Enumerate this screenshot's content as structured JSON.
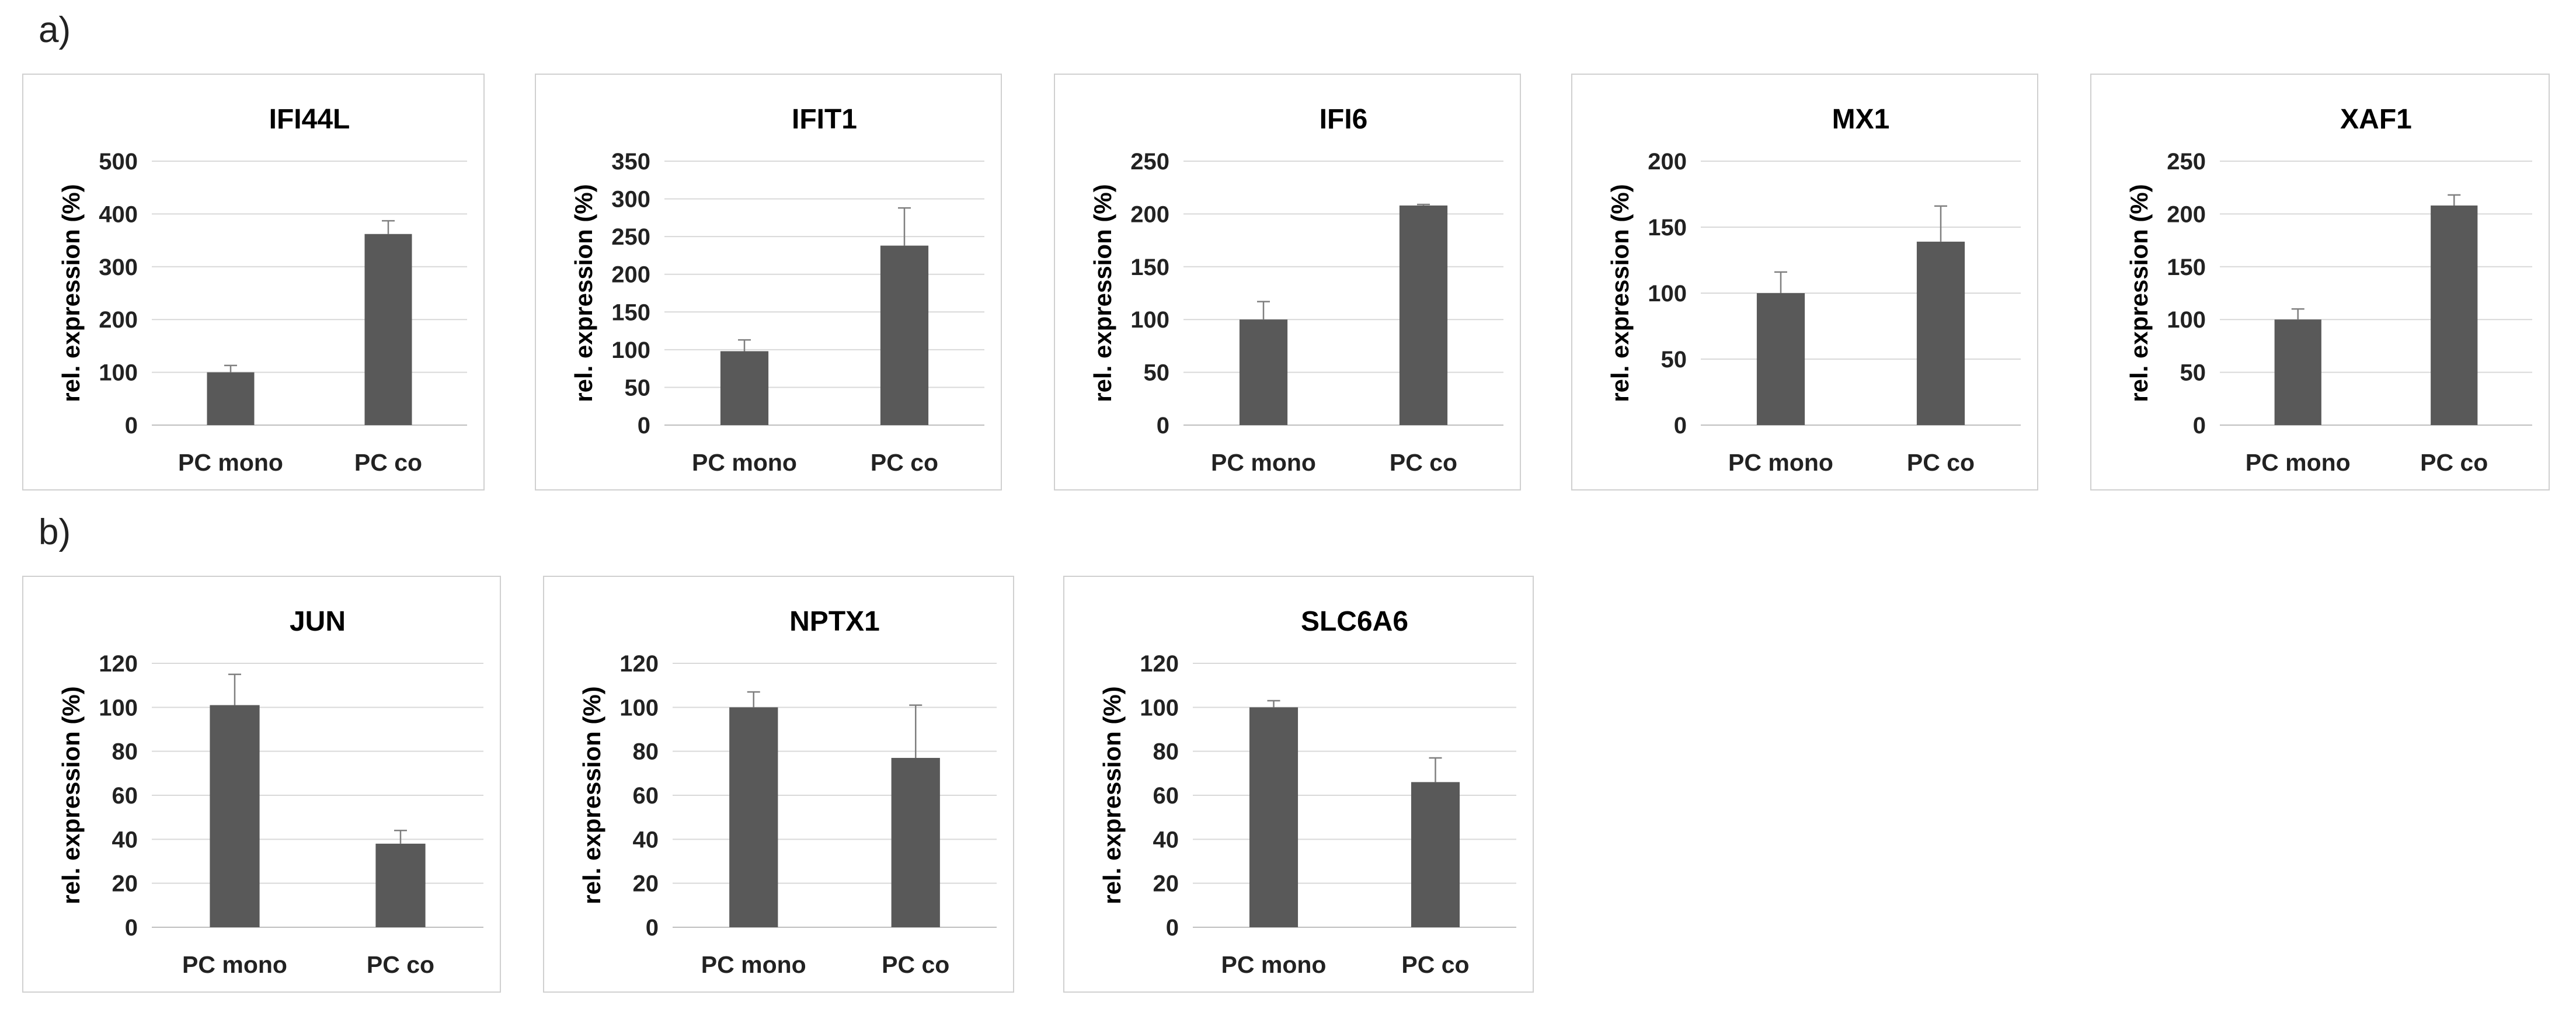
{
  "panels": [
    {
      "label": "a)"
    },
    {
      "label": "b)"
    }
  ],
  "chart_data": [
    {
      "type": "bar",
      "title": "IFI44L",
      "ylabel": "rel. expression (%)",
      "xlabel": "",
      "categories": [
        "PC mono",
        "PC co"
      ],
      "values": [
        100,
        362
      ],
      "errors": [
        13,
        25
      ],
      "ylim": [
        0,
        500
      ],
      "yticks": [
        0,
        100,
        200,
        300,
        400,
        500
      ],
      "grid": true
    },
    {
      "type": "bar",
      "title": "IFIT1",
      "ylabel": "rel. expression (%)",
      "xlabel": "",
      "categories": [
        "PC mono",
        "PC co"
      ],
      "values": [
        98,
        238
      ],
      "errors": [
        15,
        50
      ],
      "ylim": [
        0,
        350
      ],
      "yticks": [
        0,
        50,
        100,
        150,
        200,
        250,
        300,
        350
      ],
      "grid": true
    },
    {
      "type": "bar",
      "title": "IFI6",
      "ylabel": "rel. expression (%)",
      "xlabel": "",
      "categories": [
        "PC mono",
        "PC co"
      ],
      "values": [
        100,
        208
      ],
      "errors": [
        17,
        1
      ],
      "ylim": [
        0,
        250
      ],
      "yticks": [
        0,
        50,
        100,
        150,
        200,
        250
      ],
      "grid": true
    },
    {
      "type": "bar",
      "title": "MX1",
      "ylabel": "rel. expression (%)",
      "xlabel": "",
      "categories": [
        "PC mono",
        "PC co"
      ],
      "values": [
        100,
        139
      ],
      "errors": [
        16,
        27
      ],
      "ylim": [
        0,
        200
      ],
      "yticks": [
        0,
        50,
        100,
        150,
        200
      ],
      "grid": true
    },
    {
      "type": "bar",
      "title": "XAF1",
      "ylabel": "rel. expression (%)",
      "xlabel": "",
      "categories": [
        "PC mono",
        "PC co"
      ],
      "values": [
        100,
        208
      ],
      "errors": [
        10,
        10
      ],
      "ylim": [
        0,
        250
      ],
      "yticks": [
        0,
        50,
        100,
        150,
        200,
        250
      ],
      "grid": true
    },
    {
      "type": "bar",
      "title": "JUN",
      "ylabel": "rel. expression (%)",
      "xlabel": "",
      "categories": [
        "PC mono",
        "PC co"
      ],
      "values": [
        101,
        38
      ],
      "errors": [
        14,
        6
      ],
      "ylim": [
        0,
        120
      ],
      "yticks": [
        0,
        20,
        40,
        60,
        80,
        100,
        120
      ],
      "grid": true
    },
    {
      "type": "bar",
      "title": "NPTX1",
      "ylabel": "rel. expression (%)",
      "xlabel": "",
      "categories": [
        "PC mono",
        "PC co"
      ],
      "values": [
        100,
        77
      ],
      "errors": [
        7,
        24
      ],
      "ylim": [
        0,
        120
      ],
      "yticks": [
        0,
        20,
        40,
        60,
        80,
        100,
        120
      ],
      "grid": true
    },
    {
      "type": "bar",
      "title": "SLC6A6",
      "ylabel": "rel. expression (%)",
      "xlabel": "",
      "categories": [
        "PC mono",
        "PC co"
      ],
      "values": [
        100,
        66
      ],
      "errors": [
        3,
        11
      ],
      "ylim": [
        0,
        120
      ],
      "yticks": [
        0,
        20,
        40,
        60,
        80,
        100,
        120
      ],
      "grid": true
    }
  ]
}
